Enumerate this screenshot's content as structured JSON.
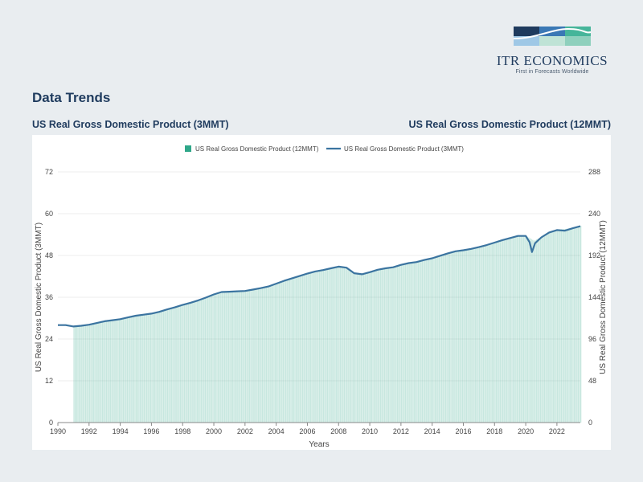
{
  "brand": {
    "name": "ITR ECONOMICS",
    "tagline": "First in Forecasts Worldwide",
    "colors": {
      "navy": "#1f3b5e",
      "blue": "#3a78b5",
      "teal": "#46b59a",
      "light": "#bfe3d6"
    }
  },
  "page": {
    "section_title": "Data Trends",
    "left_subtitle": "US Real Gross Domestic Product (3MMT)",
    "right_subtitle": "US Real Gross Domestic Product (12MMT)"
  },
  "chart_data": {
    "type": "bar+line",
    "legend": [
      {
        "name": "US Real Gross Domestic Product (12MMT)",
        "kind": "bar",
        "color": "#2fa789"
      },
      {
        "name": "US Real Gross Domestic Product (3MMT)",
        "kind": "line",
        "color": "#3b74a0"
      }
    ],
    "legend_position": "top-center",
    "xlabel": "Years",
    "ylabel_left": "US Real Gross Domestic Product (3MMT)",
    "ylabel_right": "US Real Gross Domestic Product (12MMT)",
    "xlim": [
      1990,
      2023.5
    ],
    "ylim_left": [
      0,
      72
    ],
    "ylim_right": [
      0,
      288
    ],
    "xticks": [
      "1990",
      "1992",
      "1994",
      "1996",
      "1998",
      "2000",
      "2002",
      "2004",
      "2006",
      "2008",
      "2010",
      "2012",
      "2014",
      "2016",
      "2018",
      "2020",
      "2022"
    ],
    "yticks_left": [
      "0",
      "12",
      "24",
      "36",
      "48",
      "60",
      "72"
    ],
    "yticks_right": [
      "0",
      "48",
      "96",
      "144",
      "192",
      "240",
      "288"
    ],
    "grid": true,
    "series_3mmt": [
      [
        1990.0,
        28.0
      ],
      [
        1990.5,
        28.0
      ],
      [
        1991.0,
        27.6
      ],
      [
        1991.5,
        27.8
      ],
      [
        1992.0,
        28.1
      ],
      [
        1992.5,
        28.6
      ],
      [
        1993.0,
        29.1
      ],
      [
        1993.5,
        29.4
      ],
      [
        1994.0,
        29.7
      ],
      [
        1994.5,
        30.2
      ],
      [
        1995.0,
        30.7
      ],
      [
        1995.5,
        31.0
      ],
      [
        1996.0,
        31.3
      ],
      [
        1996.5,
        31.8
      ],
      [
        1997.0,
        32.5
      ],
      [
        1997.5,
        33.1
      ],
      [
        1998.0,
        33.8
      ],
      [
        1998.5,
        34.4
      ],
      [
        1999.0,
        35.1
      ],
      [
        1999.5,
        35.9
      ],
      [
        2000.0,
        36.8
      ],
      [
        2000.5,
        37.5
      ],
      [
        2001.0,
        37.6
      ],
      [
        2001.5,
        37.7
      ],
      [
        2002.0,
        37.8
      ],
      [
        2002.5,
        38.2
      ],
      [
        2003.0,
        38.6
      ],
      [
        2003.5,
        39.1
      ],
      [
        2004.0,
        39.9
      ],
      [
        2004.5,
        40.7
      ],
      [
        2005.0,
        41.4
      ],
      [
        2005.5,
        42.1
      ],
      [
        2006.0,
        42.8
      ],
      [
        2006.5,
        43.4
      ],
      [
        2007.0,
        43.8
      ],
      [
        2007.5,
        44.3
      ],
      [
        2008.0,
        44.8
      ],
      [
        2008.5,
        44.5
      ],
      [
        2009.0,
        42.9
      ],
      [
        2009.5,
        42.6
      ],
      [
        2010.0,
        43.2
      ],
      [
        2010.5,
        43.9
      ],
      [
        2011.0,
        44.3
      ],
      [
        2011.5,
        44.6
      ],
      [
        2012.0,
        45.3
      ],
      [
        2012.5,
        45.8
      ],
      [
        2013.0,
        46.1
      ],
      [
        2013.5,
        46.7
      ],
      [
        2014.0,
        47.2
      ],
      [
        2014.5,
        47.9
      ],
      [
        2015.0,
        48.6
      ],
      [
        2015.5,
        49.2
      ],
      [
        2016.0,
        49.5
      ],
      [
        2016.5,
        49.9
      ],
      [
        2017.0,
        50.4
      ],
      [
        2017.5,
        51.0
      ],
      [
        2018.0,
        51.7
      ],
      [
        2018.5,
        52.4
      ],
      [
        2019.0,
        53.0
      ],
      [
        2019.5,
        53.6
      ],
      [
        2020.0,
        53.6
      ],
      [
        2020.25,
        51.8
      ],
      [
        2020.4,
        49.0
      ],
      [
        2020.6,
        51.5
      ],
      [
        2021.0,
        53.2
      ],
      [
        2021.5,
        54.6
      ],
      [
        2022.0,
        55.3
      ],
      [
        2022.5,
        55.1
      ],
      [
        2023.0,
        55.8
      ],
      [
        2023.5,
        56.4
      ]
    ],
    "series_12mmt": [
      [
        1991.0,
        111.0
      ],
      [
        1991.5,
        111.6
      ],
      [
        1992.0,
        112.5
      ],
      [
        1992.5,
        114.4
      ],
      [
        1993.0,
        116.4
      ],
      [
        1993.5,
        117.7
      ],
      [
        1994.0,
        119.0
      ],
      [
        1994.5,
        120.9
      ],
      [
        1995.0,
        122.9
      ],
      [
        1995.5,
        124.2
      ],
      [
        1996.0,
        125.4
      ],
      [
        1996.5,
        127.4
      ],
      [
        1997.0,
        130.2
      ],
      [
        1997.5,
        132.6
      ],
      [
        1998.0,
        135.3
      ],
      [
        1998.5,
        137.8
      ],
      [
        1999.0,
        140.5
      ],
      [
        1999.5,
        143.8
      ],
      [
        2000.0,
        147.4
      ],
      [
        2000.5,
        150.2
      ],
      [
        2001.0,
        150.6
      ],
      [
        2001.5,
        151.0
      ],
      [
        2002.0,
        151.4
      ],
      [
        2002.5,
        153.0
      ],
      [
        2003.0,
        154.6
      ],
      [
        2003.5,
        156.6
      ],
      [
        2004.0,
        159.9
      ],
      [
        2004.5,
        163.1
      ],
      [
        2005.0,
        165.9
      ],
      [
        2005.5,
        168.6
      ],
      [
        2006.0,
        171.4
      ],
      [
        2006.5,
        173.8
      ],
      [
        2007.0,
        175.4
      ],
      [
        2007.5,
        177.5
      ],
      [
        2008.0,
        179.5
      ],
      [
        2008.5,
        178.3
      ],
      [
        2009.0,
        172.0
      ],
      [
        2009.5,
        170.6
      ],
      [
        2010.0,
        173.0
      ],
      [
        2010.5,
        175.8
      ],
      [
        2011.0,
        177.5
      ],
      [
        2011.5,
        178.7
      ],
      [
        2012.0,
        181.5
      ],
      [
        2012.5,
        183.5
      ],
      [
        2013.0,
        184.7
      ],
      [
        2013.5,
        187.1
      ],
      [
        2014.0,
        189.0
      ],
      [
        2014.5,
        191.8
      ],
      [
        2015.0,
        194.7
      ],
      [
        2015.5,
        197.1
      ],
      [
        2016.0,
        198.3
      ],
      [
        2016.5,
        199.9
      ],
      [
        2017.0,
        201.9
      ],
      [
        2017.5,
        204.3
      ],
      [
        2018.0,
        207.1
      ],
      [
        2018.5,
        209.9
      ],
      [
        2019.0,
        212.3
      ],
      [
        2019.5,
        214.7
      ],
      [
        2020.0,
        214.5
      ],
      [
        2020.5,
        209.0
      ],
      [
        2021.0,
        213.5
      ],
      [
        2021.5,
        219.0
      ],
      [
        2022.0,
        222.0
      ],
      [
        2022.5,
        222.4
      ],
      [
        2023.0,
        224.0
      ],
      [
        2023.5,
        226.0
      ]
    ]
  }
}
